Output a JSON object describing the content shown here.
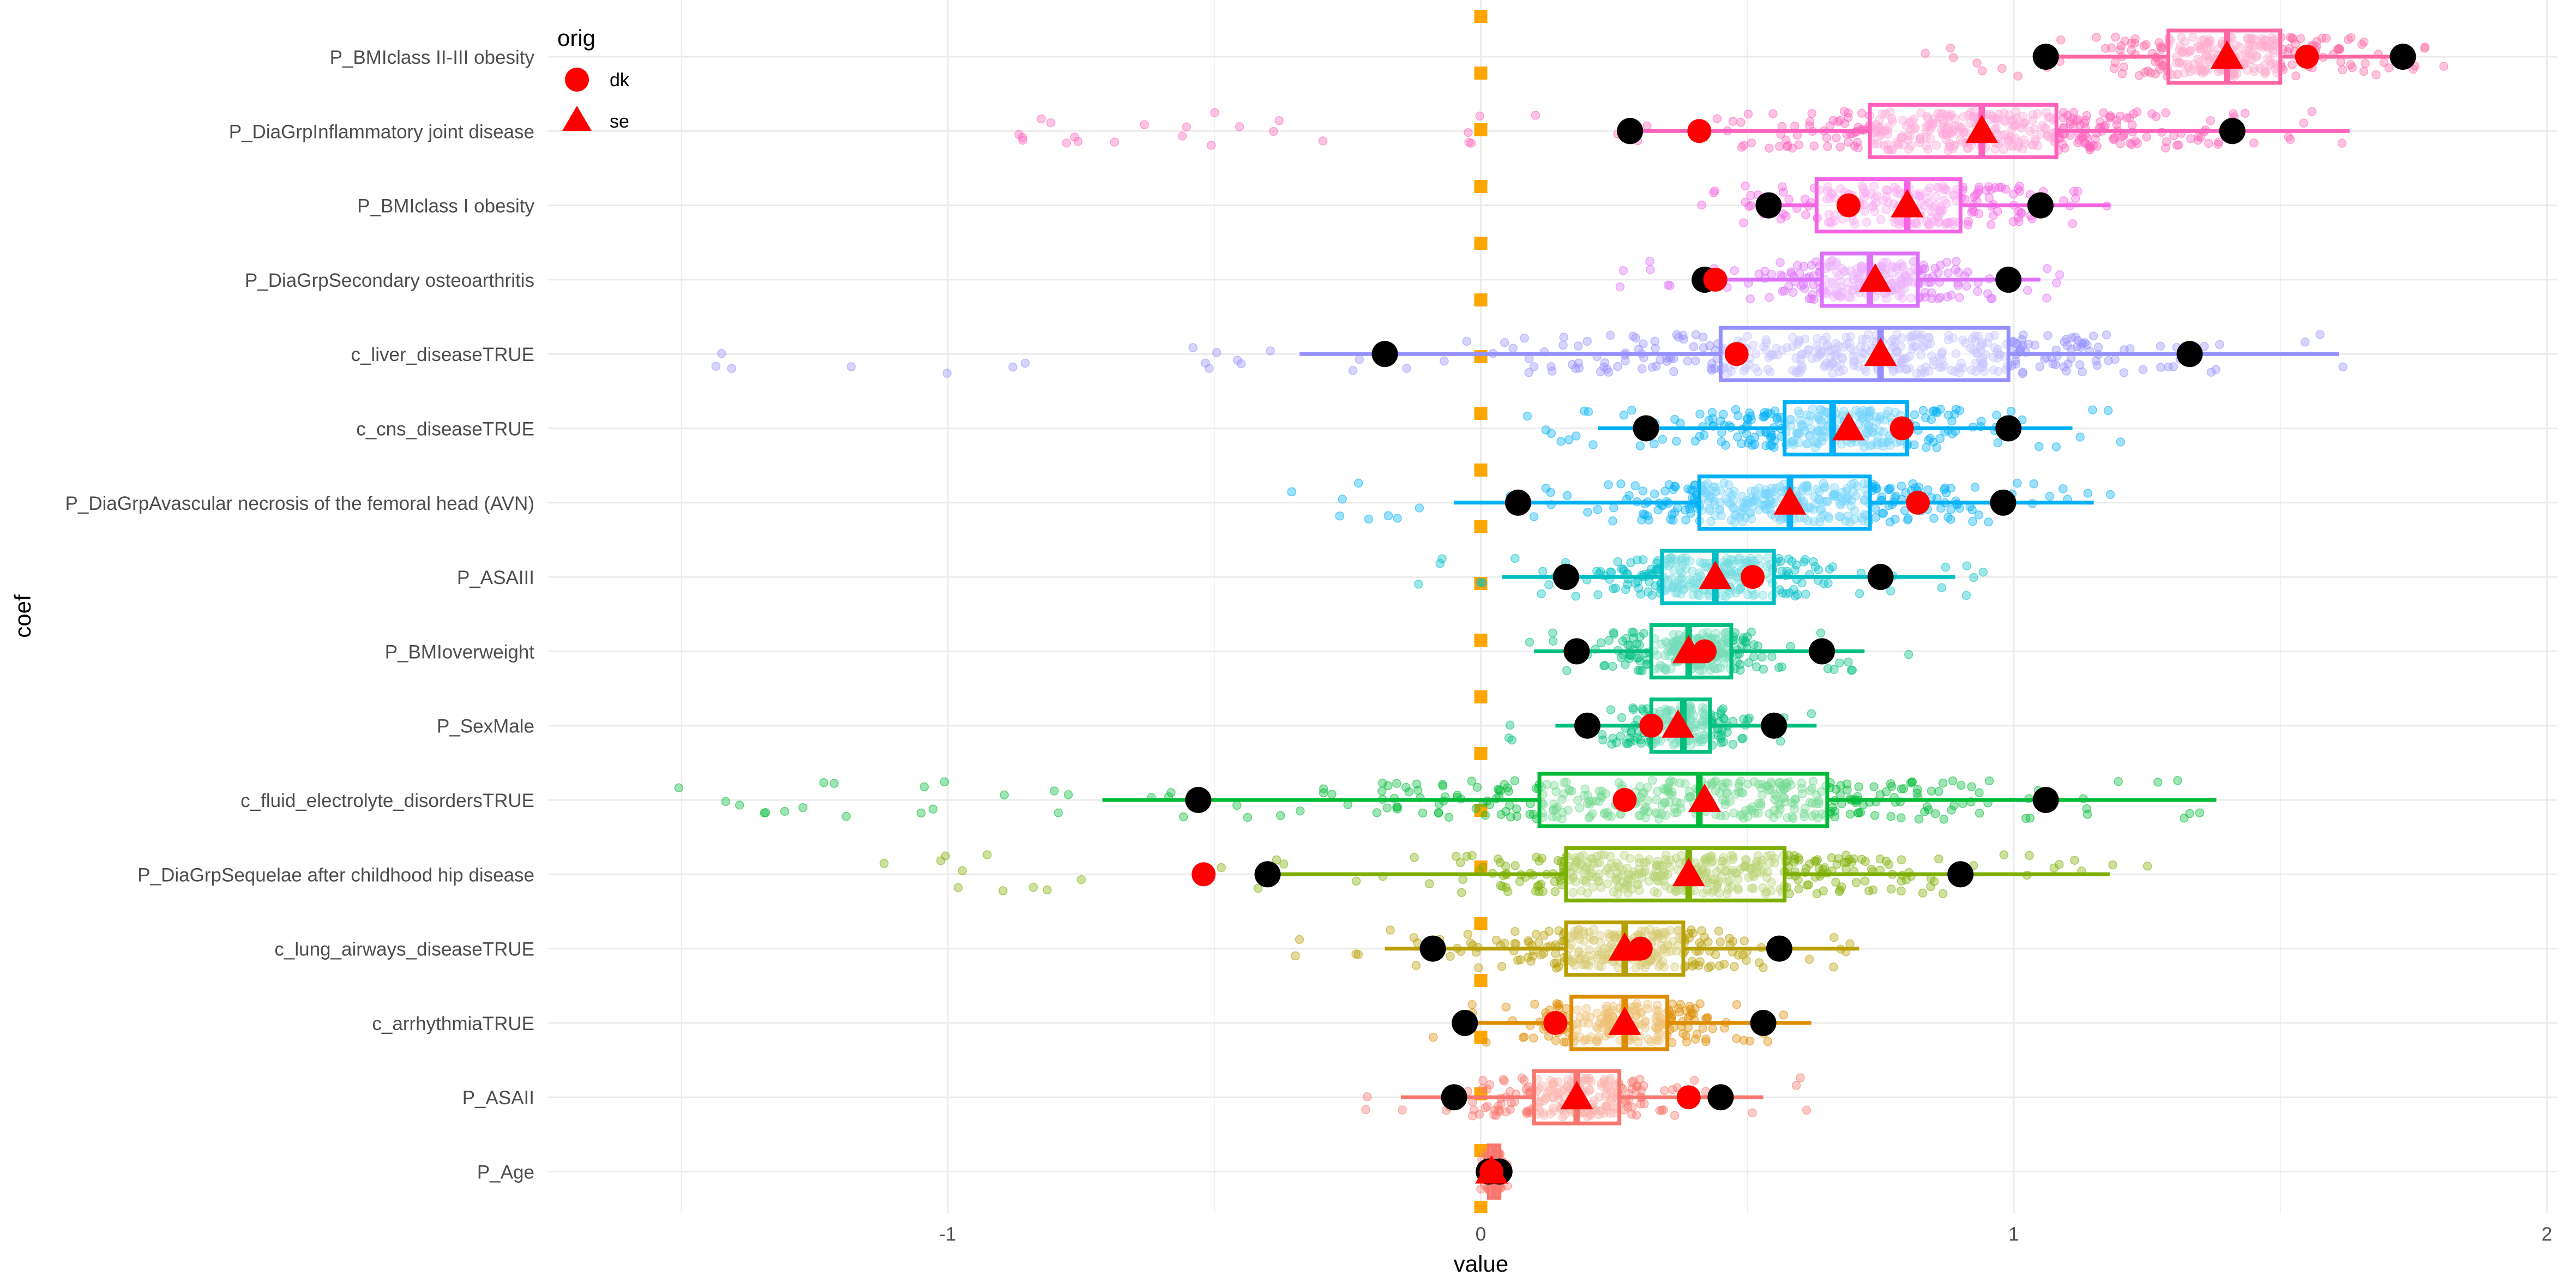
{
  "chart_data": {
    "type": "boxplot",
    "xlabel": "value",
    "ylabel": "coef",
    "xlim": [
      -1.75,
      2.02
    ],
    "x_ticks": [
      -1,
      0,
      1,
      2
    ],
    "grid": "on",
    "reference_line": {
      "value": 0,
      "style": "dotted",
      "color": "#FFA500"
    },
    "legend": {
      "title": "orig",
      "placement": "top-left",
      "entries": [
        {
          "label": "dk",
          "shape": "circle",
          "color": "#FF0000"
        },
        {
          "label": "se",
          "shape": "triangle",
          "color": "#FF0000"
        }
      ]
    },
    "categories": [
      {
        "name": "P_BMIclass II-III obesity",
        "color": "#FF67A4",
        "box": [
          1.29,
          1.4,
          1.5
        ],
        "whiskers": [
          1.06,
          1.73
        ],
        "point_range": [
          0.8,
          1.86
        ],
        "black": [
          1.06,
          1.73
        ],
        "dk": 1.55,
        "se": 1.4
      },
      {
        "name": "P_DiaGrpInflammatory joint disease",
        "color": "#FF62BC",
        "box": [
          0.73,
          0.94,
          1.08
        ],
        "whiskers": [
          0.28,
          1.63
        ],
        "point_range": [
          -0.88,
          1.63
        ],
        "black": [
          0.28,
          1.41
        ],
        "dk": 0.41,
        "se": 0.94
      },
      {
        "name": "P_BMIclass I obesity",
        "color": "#F564E3",
        "box": [
          0.63,
          0.8,
          0.9
        ],
        "whiskers": [
          0.54,
          1.18
        ],
        "point_range": [
          0.4,
          1.2
        ],
        "black": [
          0.54,
          1.05
        ],
        "dk": 0.69,
        "se": 0.8
      },
      {
        "name": "P_DiaGrpSecondary osteoarthritis",
        "color": "#DC71FA",
        "box": [
          0.64,
          0.73,
          0.82
        ],
        "whiskers": [
          0.42,
          1.05
        ],
        "point_range": [
          0.22,
          1.1
        ],
        "black": [
          0.42,
          0.99
        ],
        "dk": 0.44,
        "se": 0.74
      },
      {
        "name": "c_liver_diseaseTRUE",
        "color": "#9590FF",
        "box": [
          0.45,
          0.75,
          0.99
        ],
        "whiskers": [
          -0.34,
          1.61
        ],
        "point_range": [
          -1.45,
          1.65
        ],
        "black": [
          -0.18,
          1.33
        ],
        "dk": 0.48,
        "se": 0.75
      },
      {
        "name": "c_cns_diseaseTRUE",
        "color": "#00B0F6",
        "box": [
          0.57,
          0.66,
          0.8
        ],
        "whiskers": [
          0.22,
          1.11
        ],
        "point_range": [
          0.05,
          1.22
        ],
        "black": [
          0.31,
          0.99
        ],
        "dk": 0.79,
        "se": 0.69
      },
      {
        "name": "P_DiaGrpAvascular necrosis of the femoral head (AVN)",
        "color": "#00B0F6",
        "box": [
          0.41,
          0.58,
          0.73
        ],
        "whiskers": [
          -0.05,
          1.15
        ],
        "point_range": [
          -0.42,
          1.2
        ],
        "black": [
          0.07,
          0.98
        ],
        "dk": 0.82,
        "se": 0.58
      },
      {
        "name": "P_ASAIII",
        "color": "#00BFC4",
        "box": [
          0.34,
          0.44,
          0.55
        ],
        "whiskers": [
          0.04,
          0.89
        ],
        "point_range": [
          -0.17,
          0.96
        ],
        "black": [
          0.16,
          0.75
        ],
        "dk": 0.51,
        "se": 0.44
      },
      {
        "name": "P_BMIoverweight",
        "color": "#00BF7D",
        "box": [
          0.32,
          0.39,
          0.47
        ],
        "whiskers": [
          0.1,
          0.72
        ],
        "point_range": [
          0.05,
          0.82
        ],
        "black": [
          0.18,
          0.64
        ],
        "dk": 0.42,
        "se": 0.39
      },
      {
        "name": "P_SexMale",
        "color": "#00BF7D",
        "box": [
          0.32,
          0.38,
          0.43
        ],
        "whiskers": [
          0.14,
          0.63
        ],
        "point_range": [
          0.05,
          0.64
        ],
        "black": [
          0.2,
          0.55
        ],
        "dk": 0.32,
        "se": 0.37
      },
      {
        "name": "c_fluid_electrolyte_disordersTRUE",
        "color": "#00BA38",
        "box": [
          0.11,
          0.41,
          0.65
        ],
        "whiskers": [
          -0.71,
          1.38
        ],
        "point_range": [
          -1.6,
          1.38
        ],
        "black": [
          -0.53,
          1.06
        ],
        "dk": 0.27,
        "se": 0.42
      },
      {
        "name": "P_DiaGrpSequelae after childhood hip disease",
        "color": "#7CAE00",
        "box": [
          0.16,
          0.39,
          0.57
        ],
        "whiskers": [
          -0.42,
          1.18
        ],
        "point_range": [
          -1.22,
          1.28
        ],
        "black": [
          -0.4,
          0.9
        ],
        "dk": -0.52,
        "se": 0.39
      },
      {
        "name": "c_lung_airways_diseaseTRUE",
        "color": "#B79F00",
        "box": [
          0.16,
          0.27,
          0.38
        ],
        "whiskers": [
          -0.18,
          0.71
        ],
        "point_range": [
          -0.4,
          0.71
        ],
        "black": [
          -0.09,
          0.56
        ],
        "dk": 0.3,
        "se": 0.27
      },
      {
        "name": "c_arrhythmiaTRUE",
        "color": "#DE8C00",
        "box": [
          0.17,
          0.27,
          0.35
        ],
        "whiskers": [
          -0.05,
          0.62
        ],
        "point_range": [
          -0.1,
          0.66
        ],
        "black": [
          -0.03,
          0.53
        ],
        "dk": 0.14,
        "se": 0.27
      },
      {
        "name": "P_ASAII",
        "color": "#F8766D",
        "box": [
          0.1,
          0.18,
          0.26
        ],
        "whiskers": [
          -0.15,
          0.53
        ],
        "point_range": [
          -0.22,
          0.62
        ],
        "black": [
          -0.05,
          0.45
        ],
        "dk": 0.39,
        "se": 0.18
      },
      {
        "name": "P_Age",
        "color": "#F8766D",
        "box": [
          0.015,
          0.025,
          0.035
        ],
        "whiskers": [
          0.0,
          0.045
        ],
        "point_range": [
          0.0,
          0.05
        ],
        "black": [
          0.015,
          0.035
        ],
        "dk": 0.02,
        "se": 0.02
      }
    ]
  }
}
